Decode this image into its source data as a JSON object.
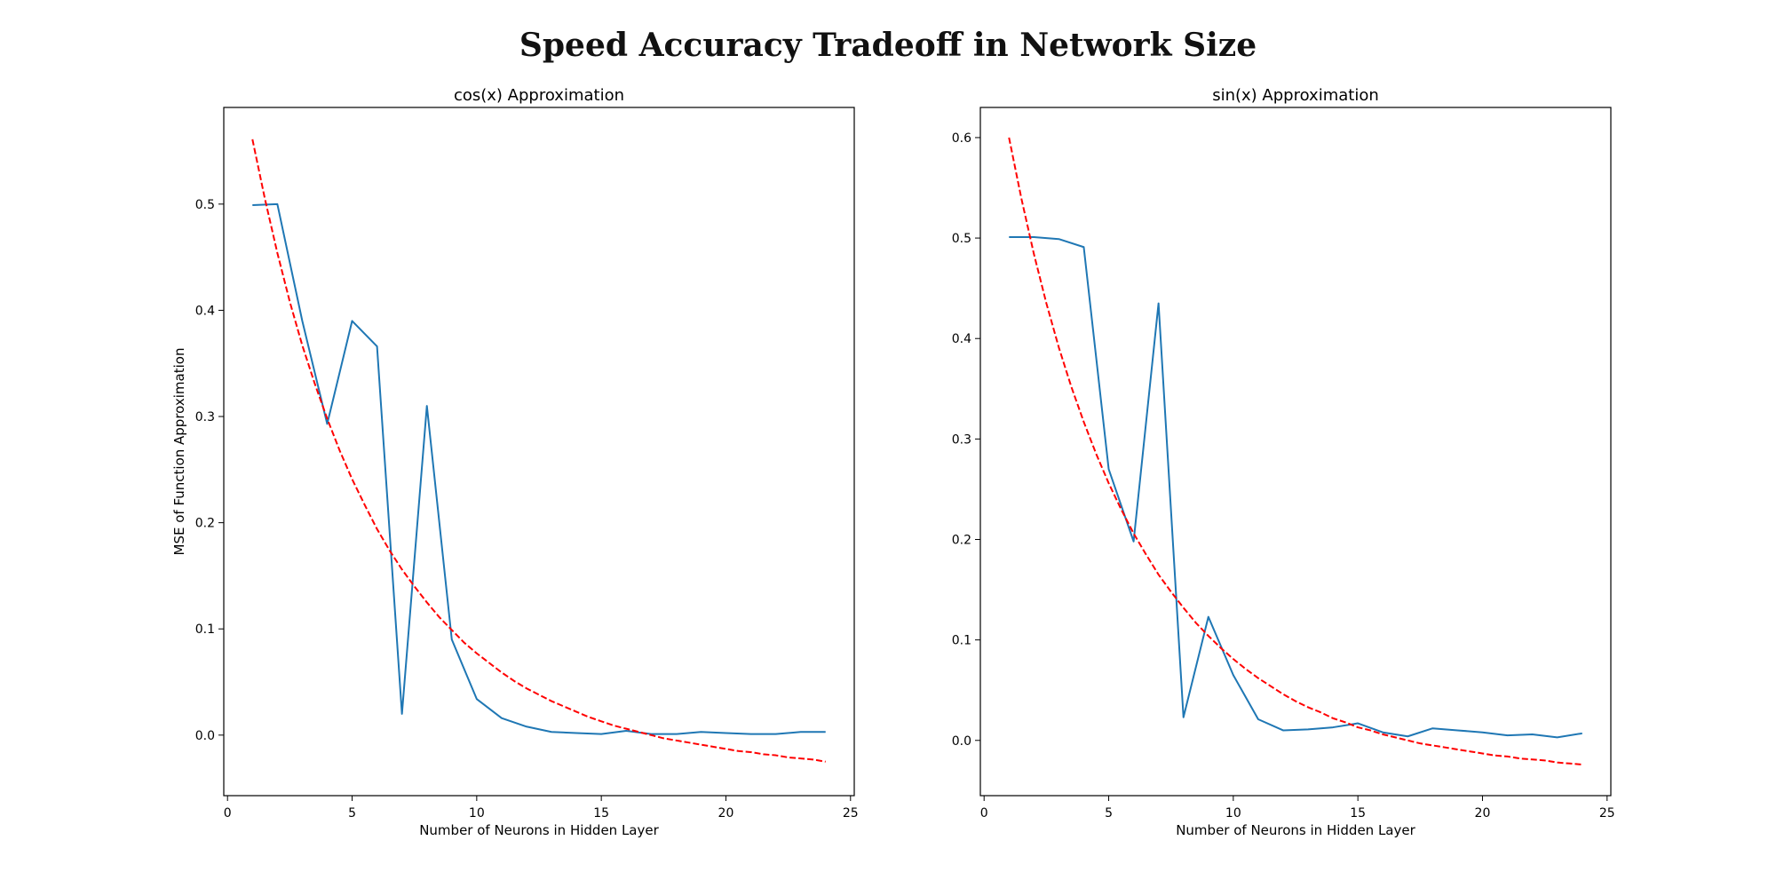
{
  "figure": {
    "title": "Speed Accuracy Tradeoff in Network Size"
  },
  "chart_data": [
    {
      "type": "line",
      "title": "cos(x) Approximation",
      "xlabel": "Number of Neurons in Hidden Layer",
      "ylabel": "MSE of Function Approximation",
      "xlim": [
        -0.15,
        25.15
      ],
      "ylim": [
        -0.057,
        0.591
      ],
      "xticks": [
        0,
        5,
        10,
        15,
        20,
        25
      ],
      "yticks": [
        0.0,
        0.1,
        0.2,
        0.3,
        0.4,
        0.5
      ],
      "ytick_labels": [
        "0.0",
        "0.1",
        "0.2",
        "0.3",
        "0.4",
        "0.5"
      ],
      "grid": false,
      "series": [
        {
          "style": "solid",
          "color": "#1f77b4",
          "x": [
            1,
            2,
            3,
            4,
            5,
            6,
            7,
            8,
            9,
            10,
            11,
            12,
            13,
            14,
            15,
            16,
            17,
            18,
            19,
            20,
            21,
            22,
            23,
            24
          ],
          "y": [
            0.499,
            0.5,
            0.39,
            0.293,
            0.39,
            0.366,
            0.02,
            0.31,
            0.09,
            0.034,
            0.016,
            0.008,
            0.003,
            0.002,
            0.001,
            0.004,
            0.001,
            0.001,
            0.003,
            0.002,
            0.001,
            0.001,
            0.003,
            0.003
          ]
        },
        {
          "style": "dashed",
          "color": "#ff0000",
          "x": [
            1,
            1.5,
            2,
            2.5,
            3,
            3.5,
            4,
            4.5,
            5,
            5.5,
            6,
            6.5,
            7,
            7.5,
            8,
            8.5,
            9,
            9.5,
            10,
            10.5,
            11,
            11.5,
            12,
            12.5,
            13,
            13.5,
            14,
            14.5,
            15,
            15.5,
            16,
            16.5,
            17,
            17.5,
            18,
            18.5,
            19,
            19.5,
            20,
            20.5,
            21,
            21.5,
            22,
            22.5,
            23,
            23.5,
            24
          ],
          "y": [
            0.561,
            0.505,
            0.454,
            0.408,
            0.367,
            0.331,
            0.298,
            0.268,
            0.241,
            0.217,
            0.194,
            0.174,
            0.156,
            0.14,
            0.125,
            0.111,
            0.099,
            0.087,
            0.077,
            0.068,
            0.059,
            0.051,
            0.044,
            0.038,
            0.032,
            0.027,
            0.022,
            0.017,
            0.013,
            0.009,
            0.006,
            0.003,
            0.0,
            -0.003,
            -0.005,
            -0.007,
            -0.009,
            -0.011,
            -0.013,
            -0.015,
            -0.016,
            -0.018,
            -0.019,
            -0.021,
            -0.022,
            -0.023,
            -0.025
          ]
        }
      ]
    },
    {
      "type": "line",
      "title": "sin(x) Approximation",
      "xlabel": "Number of Neurons in Hidden Layer",
      "ylabel": "",
      "xlim": [
        -0.15,
        25.15
      ],
      "ylim": [
        -0.055,
        0.63
      ],
      "xticks": [
        0,
        5,
        10,
        15,
        20,
        25
      ],
      "yticks": [
        0.0,
        0.1,
        0.2,
        0.3,
        0.4,
        0.5,
        0.6
      ],
      "ytick_labels": [
        "0.0",
        "0.1",
        "0.2",
        "0.3",
        "0.4",
        "0.5",
        "0.6"
      ],
      "grid": false,
      "series": [
        {
          "style": "solid",
          "color": "#1f77b4",
          "x": [
            1,
            2,
            3,
            4,
            5,
            6,
            7,
            8,
            9,
            10,
            11,
            12,
            13,
            14,
            15,
            16,
            17,
            18,
            19,
            20,
            21,
            22,
            23,
            24
          ],
          "y": [
            0.501,
            0.501,
            0.499,
            0.491,
            0.27,
            0.198,
            0.435,
            0.023,
            0.123,
            0.065,
            0.021,
            0.01,
            0.011,
            0.013,
            0.017,
            0.008,
            0.004,
            0.012,
            0.01,
            0.008,
            0.005,
            0.006,
            0.003,
            0.007
          ]
        },
        {
          "style": "dashed",
          "color": "#ff0000",
          "x": [
            1,
            1.5,
            2,
            2.5,
            3,
            3.5,
            4,
            4.5,
            5,
            5.5,
            6,
            6.5,
            7,
            7.5,
            8,
            8.5,
            9,
            9.5,
            10,
            10.5,
            11,
            11.5,
            12,
            12.5,
            13,
            13.5,
            14,
            14.5,
            15,
            15.5,
            16,
            16.5,
            17,
            17.5,
            18,
            18.5,
            19,
            19.5,
            20,
            20.5,
            21,
            21.5,
            22,
            22.5,
            23,
            23.5,
            24
          ],
          "y": [
            0.6,
            0.539,
            0.484,
            0.435,
            0.391,
            0.352,
            0.317,
            0.285,
            0.256,
            0.23,
            0.206,
            0.185,
            0.165,
            0.148,
            0.132,
            0.117,
            0.104,
            0.092,
            0.081,
            0.071,
            0.062,
            0.054,
            0.046,
            0.039,
            0.033,
            0.028,
            0.022,
            0.018,
            0.013,
            0.01,
            0.006,
            0.003,
            0.0,
            -0.003,
            -0.005,
            -0.007,
            -0.009,
            -0.011,
            -0.013,
            -0.015,
            -0.016,
            -0.018,
            -0.019,
            -0.02,
            -0.022,
            -0.023,
            -0.024
          ]
        }
      ]
    }
  ]
}
